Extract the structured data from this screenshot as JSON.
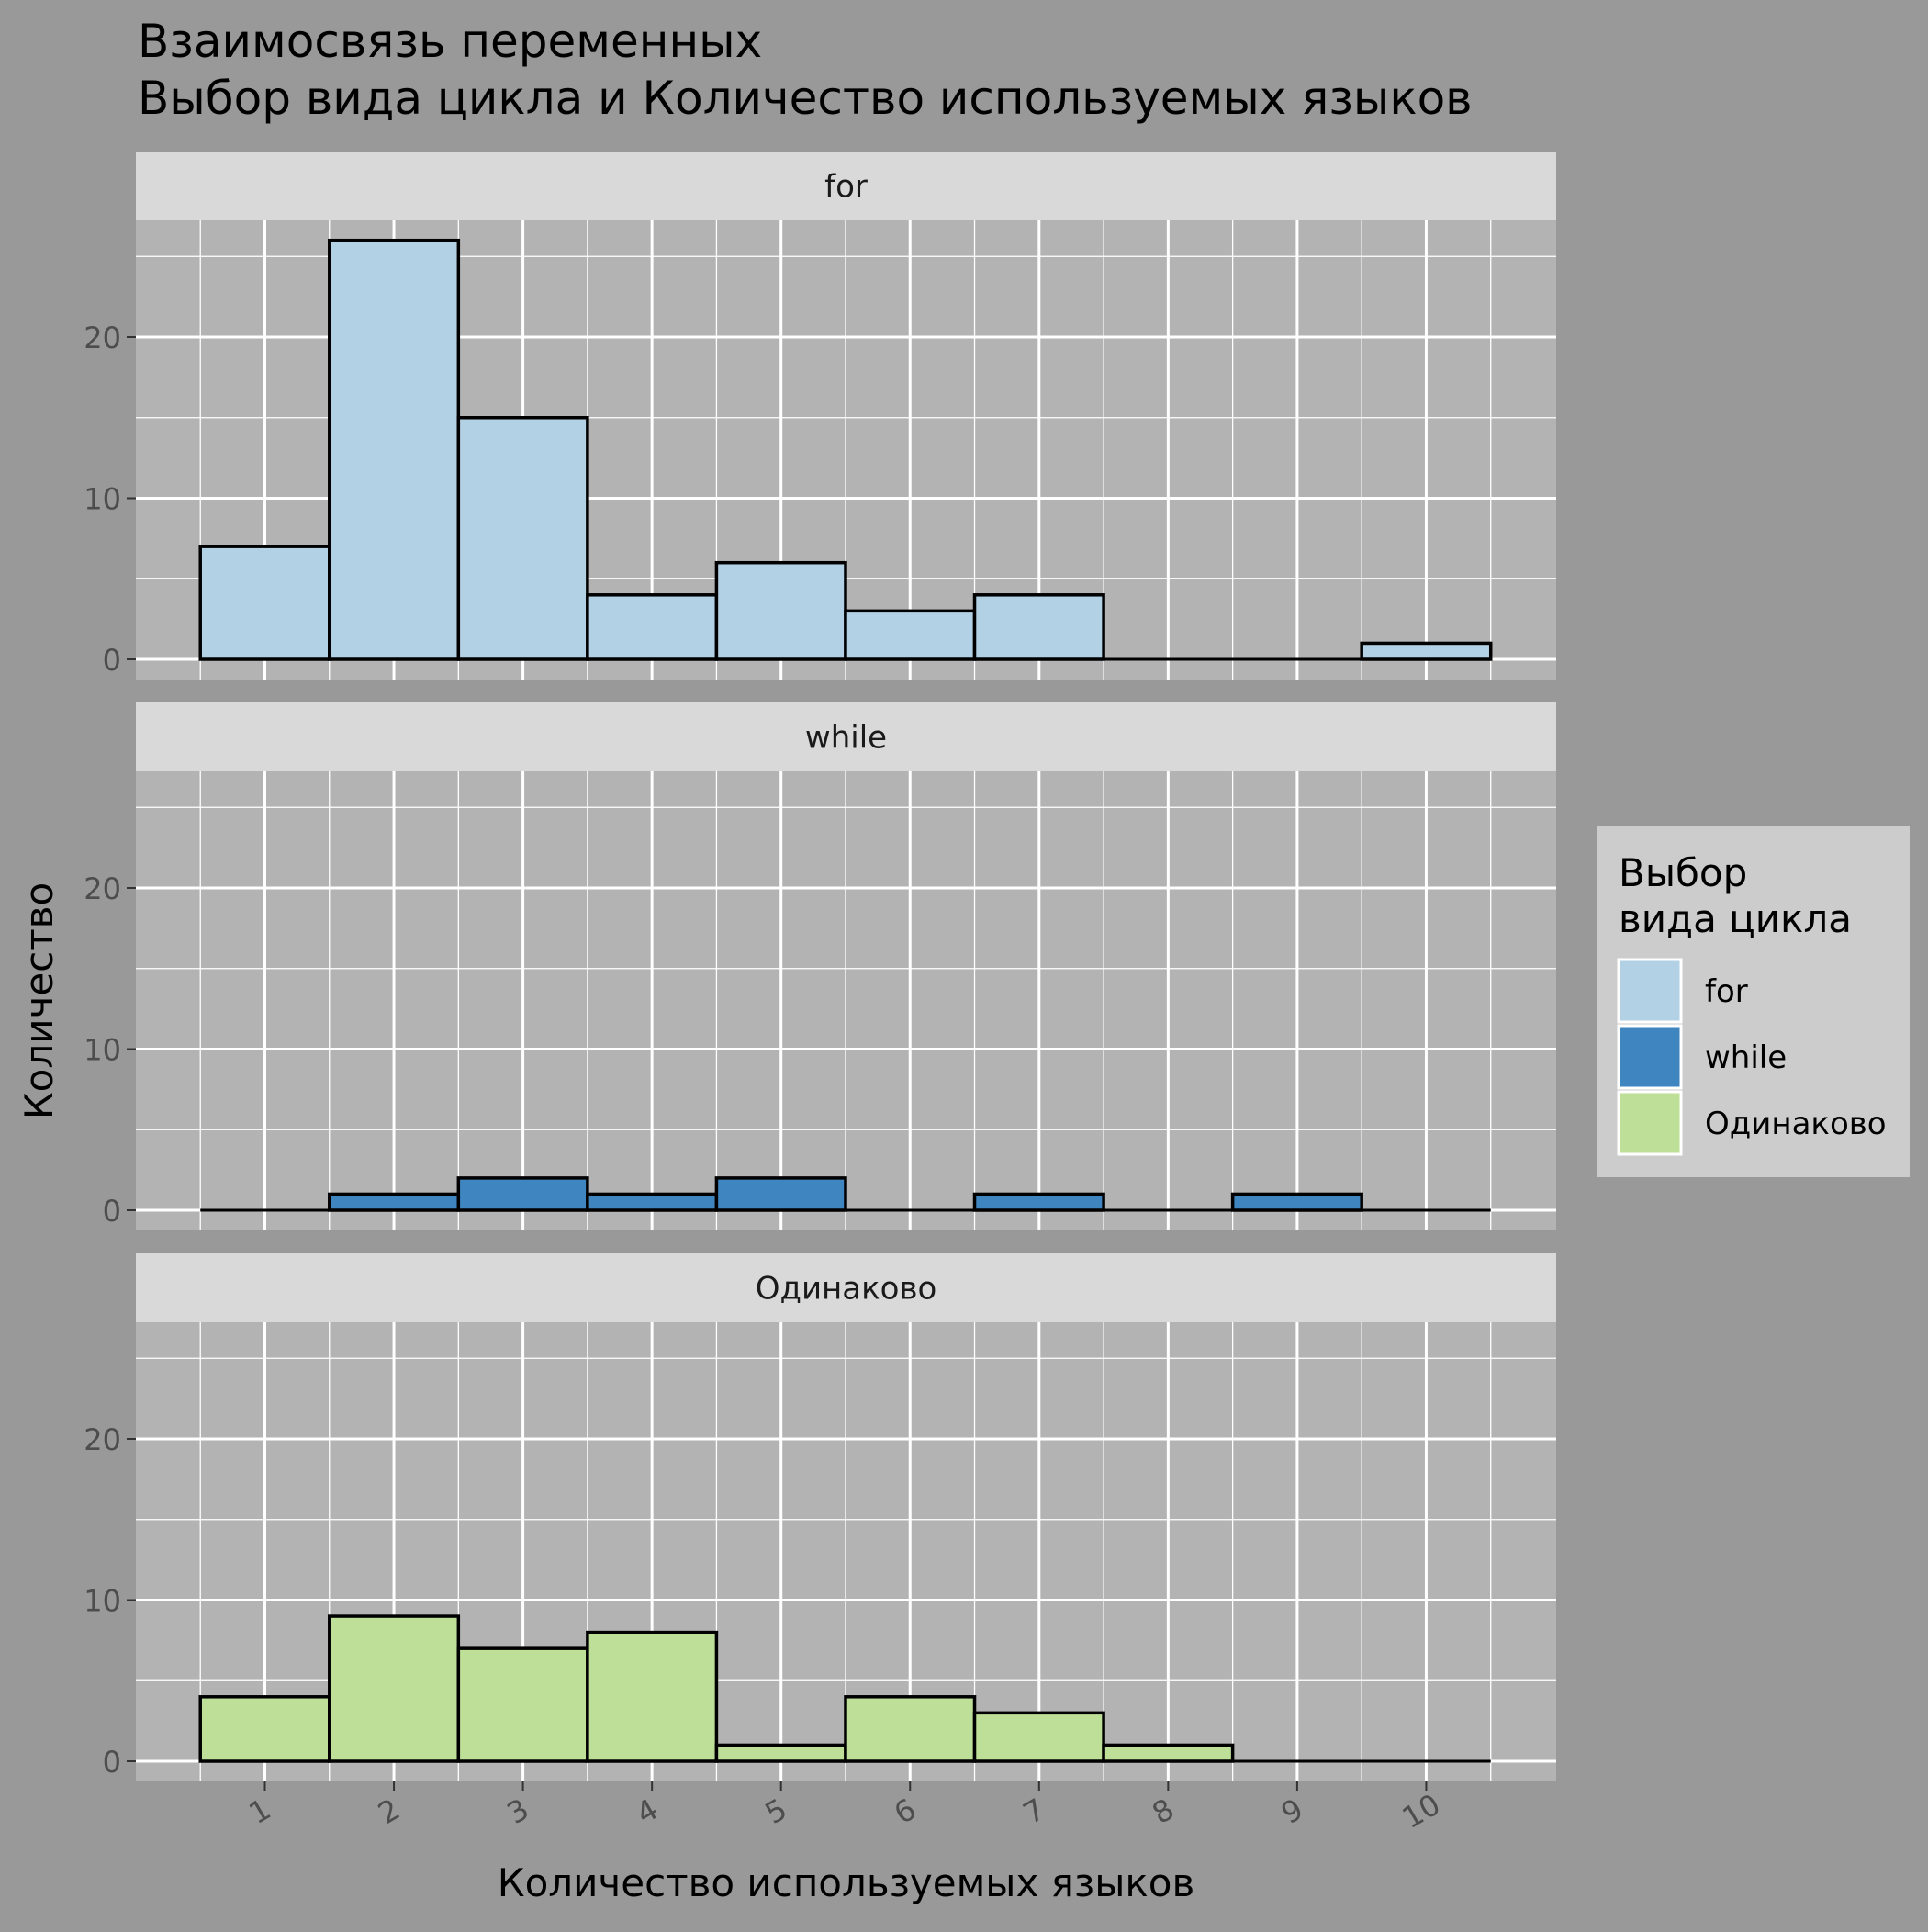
{
  "chart_data": {
    "type": "bar",
    "title": "Взаимосвязь переменных\n Выбор вида цикла и Количество используемых языков",
    "xlabel": "Количество используемых языков",
    "ylabel": "Количество",
    "x": [
      1,
      2,
      3,
      4,
      5,
      6,
      7,
      8,
      9,
      10
    ],
    "x_tick_labels": [
      "1",
      "2",
      "3",
      "4",
      "5",
      "6",
      "7",
      "8",
      "9",
      "10"
    ],
    "ylim": [
      0,
      27
    ],
    "y_ticks": [
      0,
      10,
      20
    ],
    "grid": true,
    "legend": {
      "title": "Выбор\nвида цикла",
      "position": "right",
      "entries": [
        "for",
        "while",
        "Одинаково"
      ]
    },
    "series": [
      {
        "name": "for",
        "color": "#b3d1e4",
        "values": [
          7,
          26,
          15,
          4,
          6,
          3,
          4,
          0,
          0,
          1
        ]
      },
      {
        "name": "while",
        "color": "#3f86c0",
        "values": [
          0,
          1,
          2,
          1,
          2,
          0,
          1,
          0,
          1,
          0
        ]
      },
      {
        "name": "Одинаково",
        "color": "#bddf97",
        "values": [
          4,
          9,
          7,
          8,
          1,
          4,
          3,
          1,
          0,
          0
        ]
      }
    ]
  }
}
